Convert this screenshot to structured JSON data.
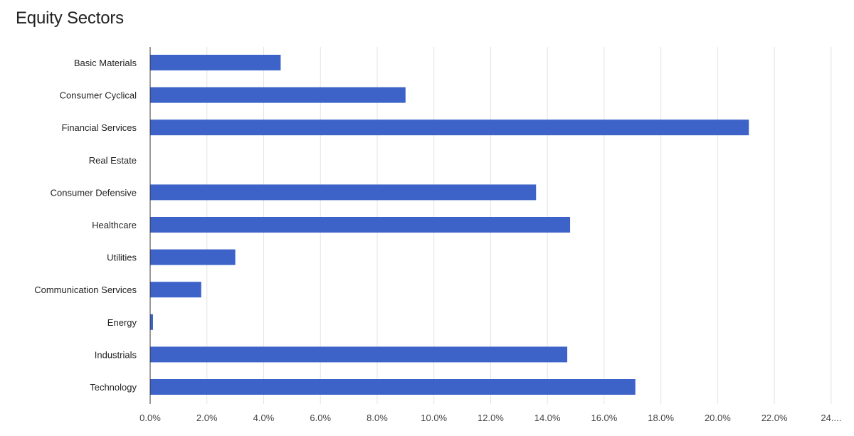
{
  "title": "Equity Sectors",
  "chart_data": {
    "type": "bar",
    "orientation": "horizontal",
    "title": "Equity Sectors",
    "xlabel": "",
    "ylabel": "",
    "categories": [
      "Basic Materials",
      "Consumer Cyclical",
      "Financial Services",
      "Real Estate",
      "Consumer Defensive",
      "Healthcare",
      "Utilities",
      "Communication Services",
      "Energy",
      "Industrials",
      "Technology"
    ],
    "values": [
      4.6,
      9.0,
      21.1,
      0.0,
      13.6,
      14.8,
      3.0,
      1.8,
      0.1,
      14.7,
      17.1
    ],
    "unit": "%",
    "xlim": [
      0,
      24
    ],
    "xticks": [
      0,
      2,
      4,
      6,
      8,
      10,
      12,
      14,
      16,
      18,
      20,
      22,
      24
    ],
    "xtick_labels": [
      "0.0%",
      "2.0%",
      "4.0%",
      "6.0%",
      "8.0%",
      "10.0%",
      "12.0%",
      "14.0%",
      "16.0%",
      "18.0%",
      "20.0%",
      "22.0%",
      "24...."
    ],
    "grid": true,
    "legend": "none",
    "bar_color": "#3d63c9",
    "grid_color": "#e3e3e3"
  }
}
